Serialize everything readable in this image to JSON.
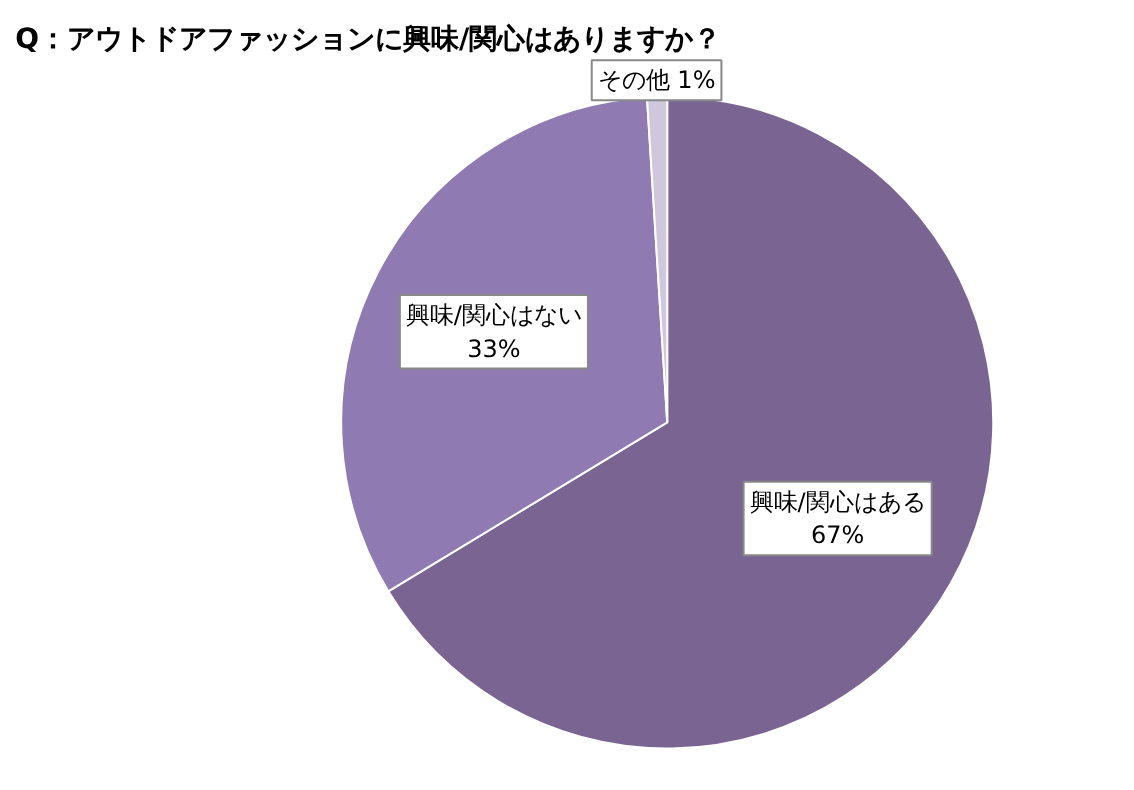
{
  "chart_data": {
    "type": "pie",
    "title": "Q：アウトドアファッションに興味/関心はありますか？",
    "categories": [
      "興味/関心はある",
      "興味/関心はない",
      "その他"
    ],
    "values": [
      67,
      33,
      1
    ],
    "value_labels": [
      "67%",
      "33%",
      "1%"
    ],
    "colors": [
      "#7a6492",
      "#8f7ab2",
      "#cfc8dd"
    ]
  }
}
